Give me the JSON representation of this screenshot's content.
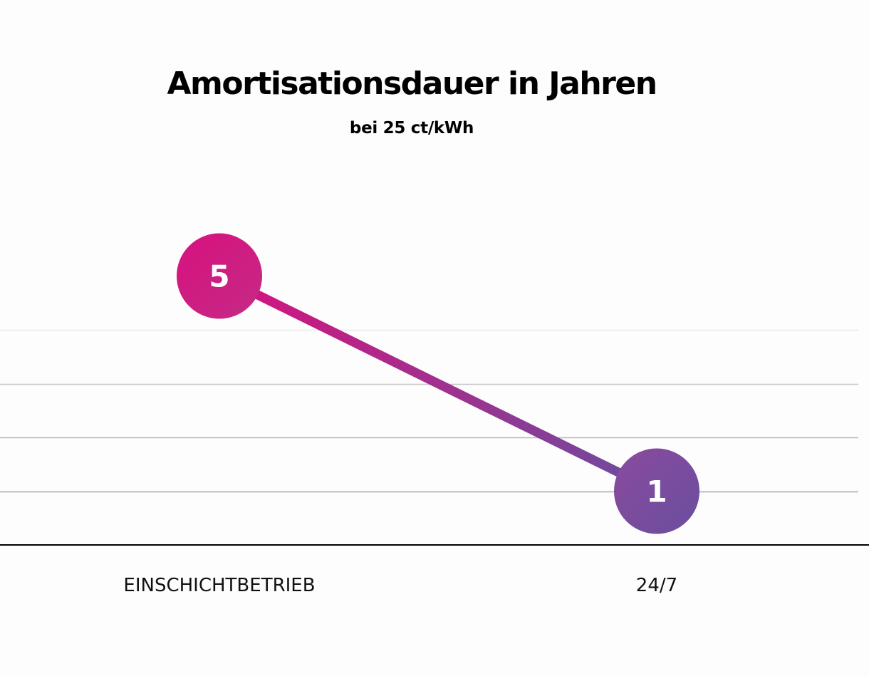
{
  "chart_data": {
    "type": "line",
    "title": "Amortisationsdauer in Jahren",
    "subtitle": "bei 25 ct/kWh",
    "categories": [
      "EINSCHICHTBETRIEB",
      "24/7"
    ],
    "series": [
      {
        "values": [
          5,
          1
        ]
      }
    ],
    "data_labels": [
      "5",
      "1"
    ],
    "ylim": [
      0,
      6
    ],
    "grid": true,
    "colors": {
      "start": "#d8117e",
      "end": "#6a4e9e",
      "grid": "#c8c8c8",
      "axis": "#000000"
    }
  }
}
